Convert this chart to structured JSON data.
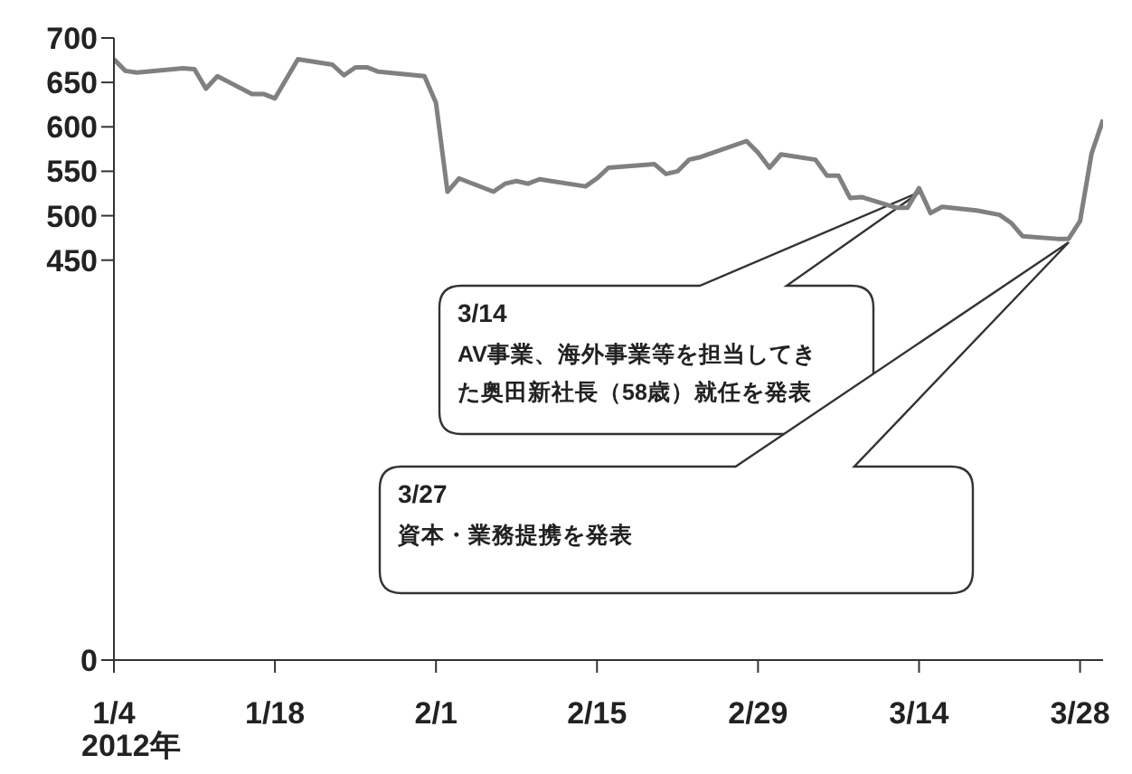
{
  "chart_data": {
    "type": "line",
    "xlabel": "2012年",
    "x": [
      "2012-01-04",
      "2012-01-05",
      "2012-01-06",
      "2012-01-10",
      "2012-01-11",
      "2012-01-12",
      "2012-01-13",
      "2012-01-16",
      "2012-01-17",
      "2012-01-18",
      "2012-01-20",
      "2012-01-23",
      "2012-01-24",
      "2012-01-25",
      "2012-01-26",
      "2012-01-27",
      "2012-01-31",
      "2012-02-01",
      "2012-02-02",
      "2012-02-03",
      "2012-02-06",
      "2012-02-07",
      "2012-02-08",
      "2012-02-09",
      "2012-02-10",
      "2012-02-14",
      "2012-02-15",
      "2012-02-16",
      "2012-02-20",
      "2012-02-21",
      "2012-02-22",
      "2012-02-23",
      "2012-02-24",
      "2012-02-28",
      "2012-02-29",
      "2012-03-01",
      "2012-03-02",
      "2012-03-05",
      "2012-03-06",
      "2012-03-07",
      "2012-03-08",
      "2012-03-09",
      "2012-03-12",
      "2012-03-13",
      "2012-03-14",
      "2012-03-15",
      "2012-03-16",
      "2012-03-19",
      "2012-03-21",
      "2012-03-22",
      "2012-03-23",
      "2012-03-26",
      "2012-03-27",
      "2012-03-28",
      "2012-03-29",
      "2012-03-30"
    ],
    "series": [
      {
        "color": "#808080",
        "values": [
          676,
          663,
          661,
          666,
          665,
          643,
          657,
          637,
          637,
          632,
          676,
          670,
          658,
          667,
          667,
          662,
          657,
          627,
          527,
          542,
          527,
          536,
          539,
          536,
          541,
          533,
          542,
          554,
          558,
          547,
          550,
          563,
          566,
          584,
          571,
          554,
          569,
          563,
          545,
          545,
          520,
          521,
          509,
          509,
          531,
          503,
          510,
          506,
          501,
          492,
          477,
          474,
          474,
          494,
          570,
          608
        ]
      }
    ],
    "xlim": [
      "2012-01-04",
      "2012-03-30"
    ],
    "xticks": [
      {
        "value": "2012-01-04",
        "label": "1/4"
      },
      {
        "value": "2012-01-18",
        "label": "1/18"
      },
      {
        "value": "2012-02-01",
        "label": "2/1"
      },
      {
        "value": "2012-02-15",
        "label": "2/15"
      },
      {
        "value": "2012-02-29",
        "label": "2/29"
      },
      {
        "value": "2012-03-14",
        "label": "3/14"
      },
      {
        "value": "2012-03-28",
        "label": "3/28"
      }
    ],
    "ylim": [
      0,
      700
    ],
    "yticks": [
      0,
      450,
      500,
      550,
      600,
      650,
      700
    ],
    "grid": false,
    "legend": false,
    "marker": "none",
    "line_style": "solid",
    "annotations": [
      "3/14",
      "AV事業、海外事業等を担当してきた奥田新社長（58歳）就任を発表",
      "3/27",
      "資本・業務提携を発表"
    ]
  }
}
